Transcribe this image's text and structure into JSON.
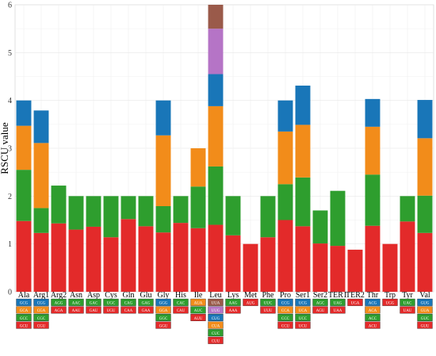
{
  "chart_data": {
    "type": "bar",
    "stacked": true,
    "ylabel": "RSCU value",
    "ylim": [
      0,
      6
    ],
    "yticks": [
      0,
      1,
      2,
      3,
      4,
      5,
      6
    ],
    "grid": true,
    "layer_colors": [
      "#E32A2A",
      "#2E9E2E",
      "#F28C1A",
      "#1976B8",
      "#B574C6",
      "#9A5A4A"
    ],
    "categories": [
      {
        "name": "Ala",
        "codons": [
          "GCU",
          "GCC",
          "GCA",
          "GCG"
        ],
        "values": [
          1.48,
          1.07,
          0.92,
          0.53
        ]
      },
      {
        "name": "Arg1",
        "codons": [
          "CGU",
          "CGC",
          "CGA",
          "CGG"
        ],
        "values": [
          1.23,
          0.52,
          1.36,
          0.68
        ]
      },
      {
        "name": "Arg2",
        "codons": [
          "AGA",
          "AGG"
        ],
        "values": [
          1.43,
          0.79
        ]
      },
      {
        "name": "Asn",
        "codons": [
          "AAU",
          "AAC"
        ],
        "values": [
          1.3,
          0.7
        ]
      },
      {
        "name": "Asp",
        "codons": [
          "GAU",
          "GAC"
        ],
        "values": [
          1.36,
          0.64
        ]
      },
      {
        "name": "Cys",
        "codons": [
          "UGU",
          "UGC"
        ],
        "values": [
          1.14,
          0.86
        ]
      },
      {
        "name": "Gln",
        "codons": [
          "CAA",
          "CAG"
        ],
        "values": [
          1.52,
          0.48
        ]
      },
      {
        "name": "Glu",
        "codons": [
          "GAA",
          "GAG"
        ],
        "values": [
          1.37,
          0.63
        ]
      },
      {
        "name": "Gly",
        "codons": [
          "GGU",
          "GGC",
          "GGA",
          "GGG"
        ],
        "values": [
          1.24,
          0.55,
          1.48,
          0.73
        ]
      },
      {
        "name": "His",
        "codons": [
          "CAU",
          "CAC"
        ],
        "values": [
          1.44,
          0.56
        ]
      },
      {
        "name": "Ile",
        "codons": [
          "AUU",
          "AUC",
          "AUA"
        ],
        "values": [
          1.33,
          0.87,
          0.8
        ]
      },
      {
        "name": "Leu",
        "codons": [
          "CUU",
          "CUC",
          "CUA",
          "CUG",
          "UUG",
          "UUA"
        ],
        "values": [
          1.4,
          1.22,
          1.26,
          0.67,
          0.95,
          0.5
        ]
      },
      {
        "name": "Lys",
        "codons": [
          "AAA",
          "AAG"
        ],
        "values": [
          1.18,
          0.82
        ]
      },
      {
        "name": "Met",
        "codons": [
          "AUG"
        ],
        "values": [
          1.0
        ]
      },
      {
        "name": "Phe",
        "codons": [
          "UUU",
          "UUC"
        ],
        "values": [
          1.14,
          0.86
        ]
      },
      {
        "name": "Pro",
        "codons": [
          "CCU",
          "CCC",
          "CCA",
          "CCG"
        ],
        "values": [
          1.5,
          0.75,
          1.1,
          0.65
        ]
      },
      {
        "name": "Ser1",
        "codons": [
          "UCU",
          "UCC",
          "UCA",
          "UCG"
        ],
        "values": [
          1.37,
          1.02,
          1.1,
          0.82
        ]
      },
      {
        "name": "Ser2",
        "codons": [
          "AGU",
          "AGC"
        ],
        "values": [
          1.01,
          0.69
        ]
      },
      {
        "name": "TER1",
        "codons": [
          "UAA",
          "UAG"
        ],
        "values": [
          0.96,
          1.15
        ]
      },
      {
        "name": "TER2",
        "codons": [
          "UGA"
        ],
        "values": [
          0.88
        ]
      },
      {
        "name": "Thr",
        "codons": [
          "ACU",
          "ACC",
          "ACA",
          "ACG"
        ],
        "values": [
          1.38,
          1.07,
          1.0,
          0.58
        ]
      },
      {
        "name": "Trp",
        "codons": [
          "UGG"
        ],
        "values": [
          1.0
        ]
      },
      {
        "name": "Tyr",
        "codons": [
          "UAU",
          "UAC"
        ],
        "values": [
          1.47,
          0.53
        ]
      },
      {
        "name": "Val",
        "codons": [
          "GUU",
          "GUC",
          "GUA",
          "GUG"
        ],
        "values": [
          1.23,
          0.78,
          1.2,
          0.8
        ]
      }
    ]
  }
}
